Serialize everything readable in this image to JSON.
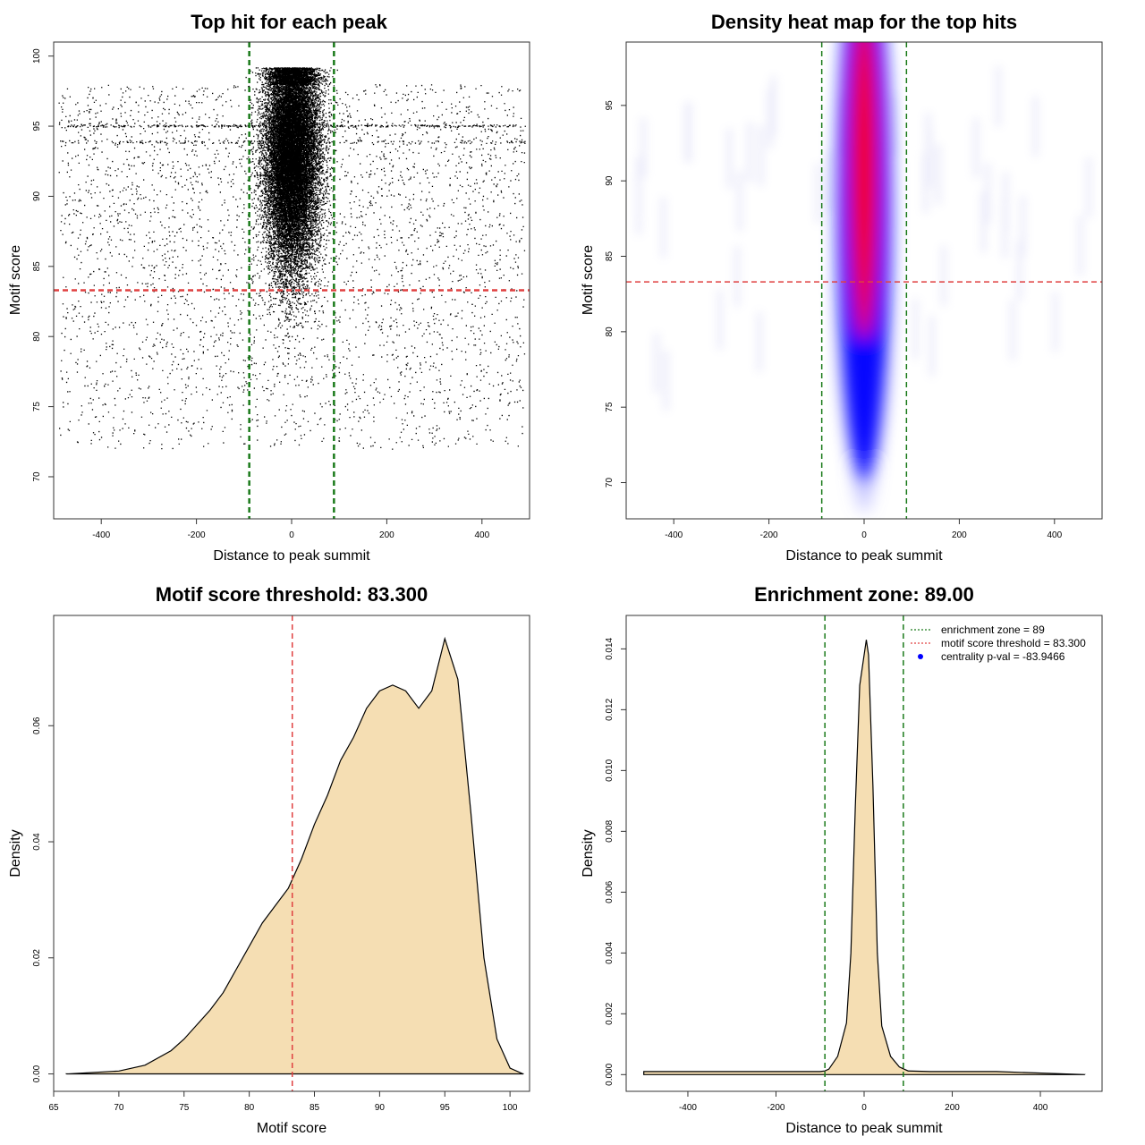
{
  "chart_data": [
    {
      "type": "scatter",
      "title": "Top hit for each peak",
      "xlabel": "Distance to peak summit",
      "ylabel": "Motif score",
      "xlim": [
        -500,
        500
      ],
      "ylim": [
        67,
        101
      ],
      "xticks": [
        -400,
        -200,
        0,
        200,
        400
      ],
      "yticks": [
        70,
        75,
        80,
        85,
        90,
        95,
        100
      ],
      "grid": false,
      "description_of_points": {
        "background": {
          "x_range": [
            -490,
            490
          ],
          "y_range": [
            70,
            99
          ],
          "approx_count": 4000
        },
        "central": {
          "x_mean": 0,
          "x_sd": 28,
          "y_range": [
            72,
            99.2
          ],
          "y_mode": 93,
          "approx_count": 20000
        }
      },
      "hlines": [
        {
          "y": 83.3,
          "color": "#e04040",
          "style": "dashed"
        }
      ],
      "vlines": [
        {
          "x": -89,
          "color": "#1a7a1a",
          "style": "dashed"
        },
        {
          "x": 89,
          "color": "#1a7a1a",
          "style": "dashed"
        }
      ]
    },
    {
      "type": "heatmap",
      "title": "Density heat map for the top hits",
      "xlabel": "Distance to peak summit",
      "ylabel": "Motif score",
      "xlim": [
        -500,
        500
      ],
      "ylim": [
        67.6,
        99.2
      ],
      "xticks": [
        -400,
        -200,
        0,
        200,
        400
      ],
      "yticks": [
        70,
        75,
        80,
        85,
        90,
        95
      ],
      "colors": [
        "#ffffff",
        "#0000ff",
        "#ff0000"
      ],
      "density_core": {
        "x_center": 0,
        "x_sd": 17,
        "y_range": [
          72,
          98
        ],
        "y_peak": 92
      },
      "hlines": [
        {
          "y": 83.3,
          "color": "#e04040",
          "style": "dashed"
        }
      ],
      "vlines": [
        {
          "x": -89,
          "color": "#1a7a1a",
          "style": "dashed"
        },
        {
          "x": 89,
          "color": "#1a7a1a",
          "style": "dashed"
        }
      ]
    },
    {
      "type": "area",
      "title": "Motif score threshold: 83.300",
      "xlabel": "Motif score",
      "ylabel": "Density",
      "xlim": [
        65,
        101.5
      ],
      "ylim": [
        -0.003,
        0.079
      ],
      "xticks": [
        65,
        70,
        75,
        80,
        85,
        90,
        95,
        100
      ],
      "yticks": [
        0.0,
        0.02,
        0.04,
        0.06
      ],
      "ytick_labels": [
        "0.00",
        "0.02",
        "0.04",
        "0.06"
      ],
      "fill": "#f5deb3",
      "x": [
        66,
        70,
        72,
        74,
        75,
        76,
        77,
        78,
        79,
        80,
        81,
        82,
        83,
        84,
        85,
        86,
        87,
        88,
        89,
        90,
        91,
        92,
        93,
        94,
        95,
        96,
        97,
        98,
        99,
        100,
        101
      ],
      "y": [
        0.0,
        0.0005,
        0.0015,
        0.004,
        0.006,
        0.0085,
        0.011,
        0.014,
        0.018,
        0.022,
        0.026,
        0.029,
        0.032,
        0.037,
        0.043,
        0.048,
        0.054,
        0.058,
        0.063,
        0.066,
        0.067,
        0.066,
        0.063,
        0.066,
        0.075,
        0.068,
        0.045,
        0.02,
        0.006,
        0.001,
        0.0
      ],
      "vlines": [
        {
          "x": 83.3,
          "color": "#e04040",
          "style": "dashed"
        }
      ]
    },
    {
      "type": "area",
      "title": "Enrichment zone: 89.00",
      "xlabel": "Distance to peak summit",
      "ylabel": "Density",
      "xlim": [
        -540,
        540
      ],
      "ylim": [
        -0.00055,
        0.0151
      ],
      "xticks": [
        -400,
        -200,
        0,
        200,
        400
      ],
      "yticks": [
        0.0,
        0.002,
        0.004,
        0.006,
        0.008,
        0.01,
        0.012,
        0.014
      ],
      "ytick_labels": [
        "0.000",
        "0.002",
        "0.004",
        "0.006",
        "0.008",
        "0.010",
        "0.012",
        "0.014"
      ],
      "fill": "#f5deb3",
      "x": [
        -500,
        -300,
        -150,
        -100,
        -89,
        -80,
        -60,
        -40,
        -30,
        -20,
        -10,
        0,
        5,
        10,
        20,
        30,
        40,
        60,
        80,
        100,
        150,
        300,
        500
      ],
      "y": [
        0.0001,
        0.0001,
        0.0001,
        0.0001,
        0.00012,
        0.00018,
        0.0006,
        0.0017,
        0.004,
        0.0088,
        0.0128,
        0.0138,
        0.0143,
        0.0138,
        0.0095,
        0.004,
        0.0016,
        0.0006,
        0.00025,
        0.00012,
        0.0001,
        0.0001,
        0.0
      ],
      "vlines": [
        {
          "x": -89,
          "color": "#1a7a1a",
          "style": "dashed"
        },
        {
          "x": 89,
          "color": "#1a7a1a",
          "style": "dashed"
        }
      ],
      "legend": {
        "position": "top-right",
        "entries": [
          {
            "label": "enrichment zone = 89",
            "color": "#1a7a1a",
            "symbol": "dotted-line"
          },
          {
            "label": "motif score threshold = 83.300",
            "color": "#e04040",
            "symbol": "dotted-line"
          },
          {
            "label": "centrality p-val = -83.9466",
            "color": "#0000ff",
            "symbol": "point"
          }
        ]
      }
    }
  ]
}
